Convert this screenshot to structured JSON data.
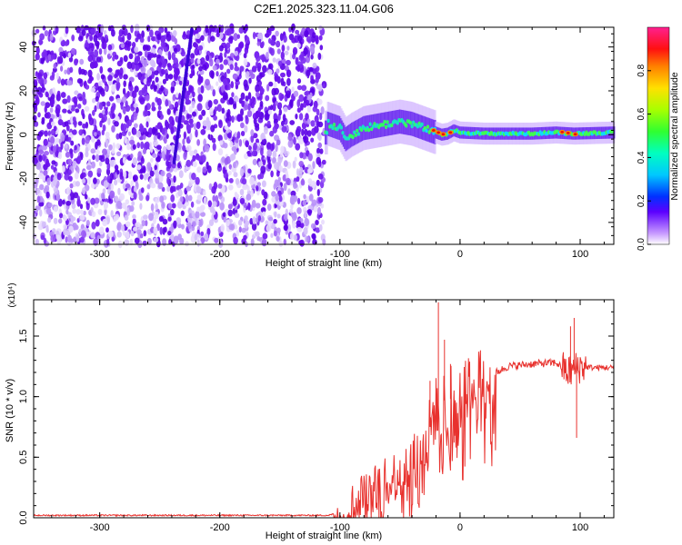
{
  "title": "C2E1.2025.323.11.04.G06",
  "colors": {
    "snr_line": "#e8322e",
    "background": "#ffffff",
    "axis": "#000000"
  },
  "chart_data": [
    {
      "type": "heatmap",
      "xlabel": "Height of straight line (km)",
      "ylabel": "Frequency (Hz)",
      "xlim": [
        -355,
        128
      ],
      "ylim": [
        -50,
        49
      ],
      "x_ticks": [
        -300,
        -200,
        -100,
        0,
        100
      ],
      "y_ticks": [
        -40,
        -20,
        0,
        20,
        40
      ],
      "grid": false,
      "noise_region_x": [
        -355,
        -113
      ],
      "signal_track": [
        {
          "x": -110,
          "y": 5
        },
        {
          "x": -100,
          "y": 3
        },
        {
          "x": -95,
          "y": -2
        },
        {
          "x": -90,
          "y": 0
        },
        {
          "x": -80,
          "y": 3
        },
        {
          "x": -70,
          "y": 4
        },
        {
          "x": -60,
          "y": 5
        },
        {
          "x": -50,
          "y": 6
        },
        {
          "x": -40,
          "y": 5
        },
        {
          "x": -30,
          "y": 3
        },
        {
          "x": -25,
          "y": 2
        },
        {
          "x": -20,
          "y": 1
        },
        {
          "x": -15,
          "y": 0
        },
        {
          "x": -10,
          "y": 0.5
        },
        {
          "x": -5,
          "y": 2
        },
        {
          "x": 0,
          "y": 1
        },
        {
          "x": 20,
          "y": 0.5
        },
        {
          "x": 40,
          "y": 0.5
        },
        {
          "x": 60,
          "y": 0.5
        },
        {
          "x": 80,
          "y": 1
        },
        {
          "x": 95,
          "y": 0.5
        },
        {
          "x": 128,
          "y": 1
        }
      ],
      "colorbar": {
        "label": "Normalized spectral amplitude",
        "range": [
          0,
          1
        ],
        "ticks": [
          "0.0",
          "0.2",
          "0.4",
          "0.6",
          "0.8"
        ]
      }
    },
    {
      "type": "line",
      "xlabel": "Height of straight line (km)",
      "ylabel": "SNR (10 * v/v)",
      "y_multiplier": "(x10⁴)",
      "xlim": [
        -355,
        128
      ],
      "ylim": [
        0,
        1.8
      ],
      "x_ticks": [
        -300,
        -200,
        -100,
        0,
        100
      ],
      "y_ticks": [
        "0.0",
        "0.5",
        "1.0",
        "1.5"
      ],
      "grid": false,
      "series": [
        {
          "points": [
            [
              -355,
              0.02
            ],
            [
              -300,
              0.02
            ],
            [
              -250,
              0.02
            ],
            [
              -200,
              0.02
            ],
            [
              -150,
              0.02
            ],
            [
              -110,
              0.02
            ],
            [
              -100,
              0.04
            ],
            [
              -90,
              0.15
            ],
            [
              -80,
              0.2
            ],
            [
              -70,
              0.25
            ],
            [
              -60,
              0.3
            ],
            [
              -50,
              0.38
            ],
            [
              -40,
              0.45
            ],
            [
              -30,
              0.55
            ],
            [
              -25,
              0.75
            ],
            [
              -20,
              0.9
            ],
            [
              -15,
              0.95
            ],
            [
              -10,
              1.0
            ],
            [
              -5,
              0.95
            ],
            [
              0,
              0.95
            ],
            [
              10,
              1.05
            ],
            [
              20,
              1.12
            ],
            [
              30,
              1.2
            ],
            [
              40,
              1.25
            ],
            [
              60,
              1.27
            ],
            [
              80,
              1.28
            ],
            [
              90,
              1.2
            ],
            [
              100,
              1.25
            ],
            [
              110,
              1.24
            ],
            [
              128,
              1.24
            ]
          ],
          "spikes": [
            [
              -18,
              1.78
            ],
            [
              -13,
              1.47
            ],
            [
              -25,
              1.13
            ],
            [
              -8,
              1.27
            ],
            [
              -5,
              0.62
            ],
            [
              95,
              1.65
            ],
            [
              97,
              0.66
            ],
            [
              92,
              1.58
            ]
          ]
        }
      ]
    }
  ]
}
